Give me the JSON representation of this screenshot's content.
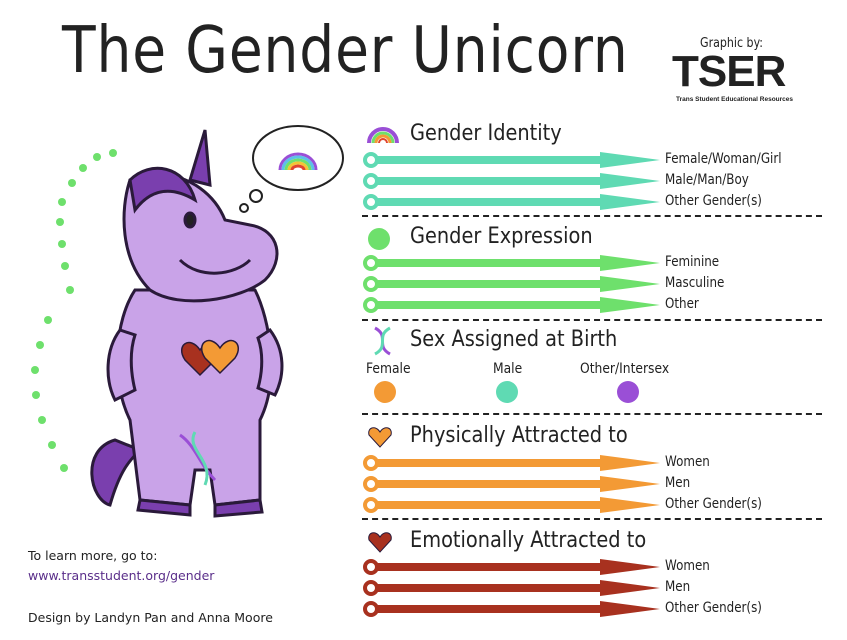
{
  "title": "The Gender Unicorn",
  "credit": {
    "label": "Graphic by:",
    "logo": "TSER",
    "logo_subtitle": "Trans Student Educational Resources"
  },
  "sections": [
    {
      "key": "identity",
      "title": "Gender Identity",
      "icon": "rainbow-icon",
      "color": "#5fdab3",
      "items": [
        "Female/Woman/Girl",
        "Male/Man/Boy",
        "Other Gender(s)"
      ]
    },
    {
      "key": "expression",
      "title": "Gender Expression",
      "icon": "green-circle-icon",
      "color": "#6ee06c",
      "items": [
        "Feminine",
        "Masculine",
        "Other"
      ]
    },
    {
      "key": "physical",
      "title": "Physically Attracted to",
      "icon": "orange-heart-icon",
      "color": "#f39a35",
      "items": [
        "Women",
        "Men",
        "Other Gender(s)"
      ]
    },
    {
      "key": "emotional",
      "title": "Emotionally Attracted to",
      "icon": "red-heart-icon",
      "color": "#a8311f",
      "items": [
        "Women",
        "Men",
        "Other Gender(s)"
      ]
    }
  ],
  "sex": {
    "title": "Sex Assigned at Birth",
    "icon": "dna-icon",
    "options": [
      {
        "label": "Female",
        "color": "#f39a35"
      },
      {
        "label": "Male",
        "color": "#5fdab3"
      },
      {
        "label": "Other/Intersex",
        "color": "#9a4fd6"
      }
    ]
  },
  "footer": {
    "learn_more": "To learn more, go to:",
    "url": "www.transstudent.org/gender",
    "design": "Design by Landyn Pan and Anna Moore"
  }
}
